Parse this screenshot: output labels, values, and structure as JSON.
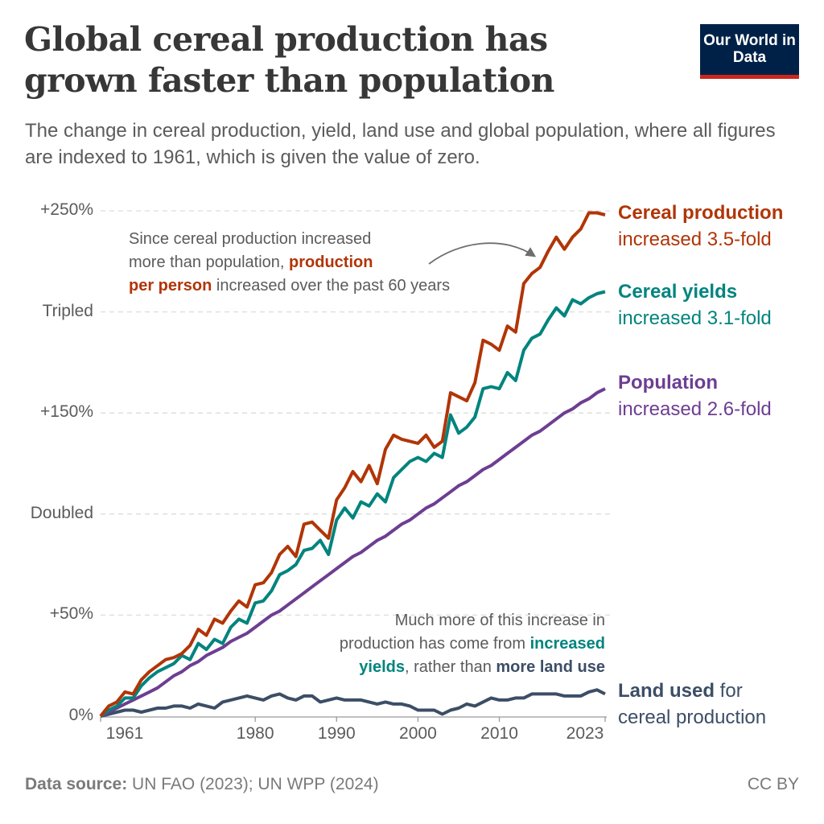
{
  "header": {
    "title": "Global cereal production has grown faster than population",
    "subtitle": "The change in cereal production, yield, land use and global population, where all figures are indexed to 1961, which is given the value of zero.",
    "logo": "Our World in Data"
  },
  "chart_data": {
    "type": "line",
    "title": "Global cereal production has grown faster than population",
    "xlabel": "",
    "ylabel": "",
    "xlim": [
      1961,
      2023
    ],
    "ylim": [
      0,
      250
    ],
    "grid": "horizontal dashed",
    "x_ticks": [
      "1961",
      "1980",
      "1990",
      "2000",
      "2010",
      "2023"
    ],
    "x_tick_values": [
      1961,
      1980,
      1990,
      2000,
      2010,
      2023
    ],
    "y_ticks": [
      {
        "value": 0,
        "label": "0%"
      },
      {
        "value": 50,
        "label": "+50%"
      },
      {
        "value": 100,
        "label": "Doubled"
      },
      {
        "value": 150,
        "label": "+150%"
      },
      {
        "value": 200,
        "label": "Tripled"
      },
      {
        "value": 250,
        "label": "+250%"
      }
    ],
    "x": [
      1961,
      1962,
      1963,
      1964,
      1965,
      1966,
      1967,
      1968,
      1969,
      1970,
      1971,
      1972,
      1973,
      1974,
      1975,
      1976,
      1977,
      1978,
      1979,
      1980,
      1981,
      1982,
      1983,
      1984,
      1985,
      1986,
      1987,
      1988,
      1989,
      1990,
      1991,
      1992,
      1993,
      1994,
      1995,
      1996,
      1997,
      1998,
      1999,
      2000,
      2001,
      2002,
      2003,
      2004,
      2005,
      2006,
      2007,
      2008,
      2009,
      2010,
      2011,
      2012,
      2013,
      2014,
      2015,
      2016,
      2017,
      2018,
      2019,
      2020,
      2021,
      2022,
      2023
    ],
    "series": [
      {
        "name": "Cereal production",
        "label_line1": "Cereal production",
        "label_line2": "increased 3.5-fold",
        "color": "#b13507",
        "values": [
          0,
          5,
          7,
          12,
          11,
          18,
          22,
          25,
          28,
          29,
          31,
          35,
          43,
          40,
          48,
          46,
          52,
          57,
          54,
          65,
          66,
          71,
          80,
          84,
          79,
          95,
          96,
          92,
          88,
          107,
          113,
          121,
          116,
          124,
          115,
          132,
          139,
          137,
          136,
          135,
          139,
          133,
          136,
          160,
          158,
          156,
          165,
          186,
          184,
          181,
          193,
          190,
          214,
          219,
          222,
          230,
          237,
          231,
          237,
          241,
          249,
          249,
          248
        ]
      },
      {
        "name": "Cereal yields",
        "label_line1": "Cereal yields",
        "label_line2": "increased 3.1-fold",
        "color": "#00847e",
        "values": [
          0,
          3,
          5,
          9,
          9,
          15,
          19,
          22,
          24,
          26,
          30,
          28,
          36,
          33,
          38,
          36,
          44,
          48,
          46,
          56,
          57,
          62,
          70,
          72,
          75,
          82,
          83,
          87,
          80,
          97,
          103,
          98,
          106,
          104,
          110,
          106,
          118,
          122,
          126,
          128,
          126,
          130,
          128,
          149,
          140,
          143,
          148,
          162,
          163,
          162,
          170,
          166,
          181,
          187,
          189,
          196,
          202,
          198,
          206,
          204,
          207,
          209,
          210
        ]
      },
      {
        "name": "Population",
        "label_line1": "Population",
        "label_line2": "increased 2.6-fold",
        "color": "#6d3e91",
        "values": [
          0,
          2,
          4,
          6,
          8,
          10,
          12,
          14,
          17,
          20,
          22,
          25,
          27,
          30,
          32,
          34,
          37,
          39,
          41,
          44,
          47,
          50,
          52,
          55,
          58,
          61,
          64,
          67,
          70,
          73,
          76,
          79,
          81,
          84,
          87,
          89,
          92,
          95,
          97,
          100,
          103,
          105,
          108,
          111,
          114,
          116,
          119,
          122,
          124,
          127,
          130,
          133,
          136,
          139,
          141,
          144,
          147,
          150,
          152,
          155,
          157,
          160,
          162
        ]
      },
      {
        "name": "Land used for cereal production",
        "label_line1": "Land used",
        "label_line1_suffix": " for",
        "label_line2": "cereal production",
        "color": "#3c4e66",
        "values": [
          0,
          1,
          2,
          3,
          3,
          2,
          3,
          4,
          4,
          5,
          5,
          4,
          6,
          5,
          4,
          7,
          8,
          9,
          10,
          9,
          8,
          10,
          11,
          9,
          8,
          10,
          10,
          7,
          8,
          9,
          8,
          8,
          8,
          7,
          6,
          7,
          6,
          6,
          5,
          3,
          3,
          3,
          1,
          3,
          4,
          6,
          5,
          7,
          9,
          8,
          8,
          9,
          9,
          11,
          11,
          11,
          11,
          10,
          10,
          10,
          12,
          13,
          11
        ]
      }
    ],
    "annotations": {
      "production_per_person": {
        "line1": "Since cereal production increased",
        "line2_plain": "more than population, ",
        "line2_bold": "production",
        "line3_bold": "per person",
        "line3_plain": " increased over the past 60 years"
      },
      "yields_vs_land": {
        "line1": "Much more of this increase in",
        "line2_plain": "production has come from ",
        "line2_bold": "increased",
        "line3_bold": "yields",
        "line3_plain": ", rather than ",
        "line3_bold2": "more land use"
      }
    }
  },
  "footer": {
    "source_label": "Data source:",
    "source_text": " UN FAO (2023); UN WPP (2024)",
    "license": "CC BY"
  }
}
